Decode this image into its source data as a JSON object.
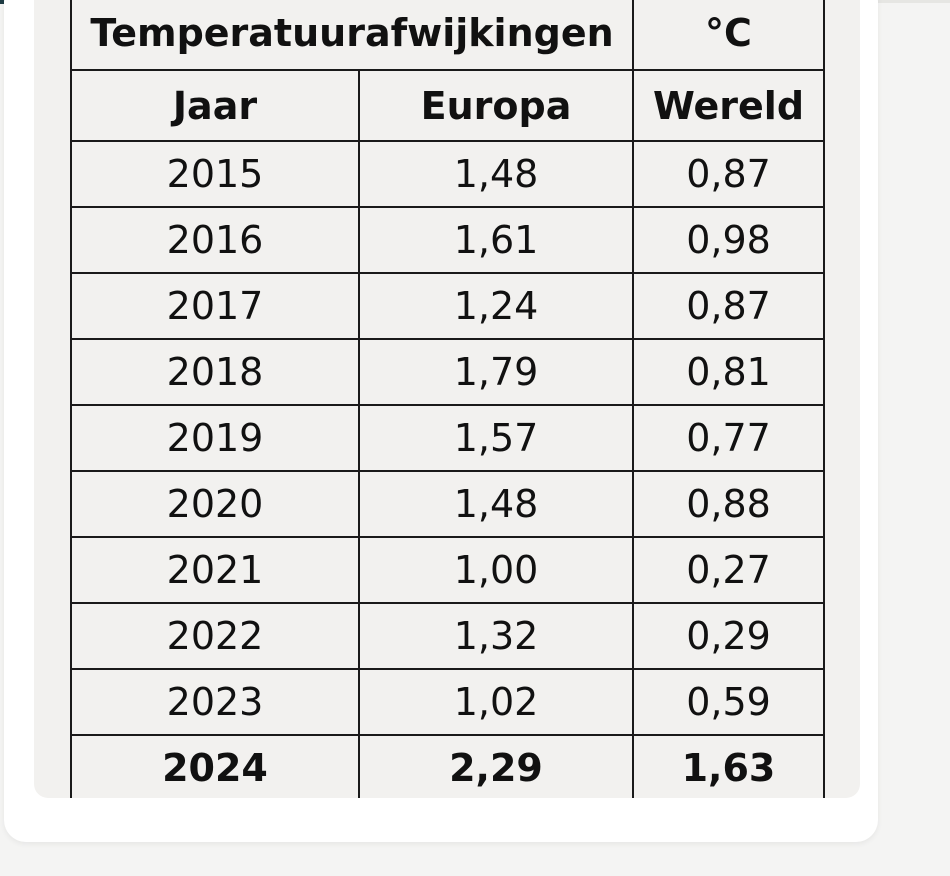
{
  "chart_data": {
    "type": "table",
    "title": "Temperatuurafwijkingen",
    "unit": "°C",
    "columns": [
      "Jaar",
      "Europa",
      "Wereld"
    ],
    "rows": [
      {
        "jaar": "2015",
        "europa": "1,48",
        "wereld": "0,87"
      },
      {
        "jaar": "2016",
        "europa": "1,61",
        "wereld": "0,98"
      },
      {
        "jaar": "2017",
        "europa": "1,24",
        "wereld": "0,87"
      },
      {
        "jaar": "2018",
        "europa": "1,79",
        "wereld": "0,81"
      },
      {
        "jaar": "2019",
        "europa": "1,57",
        "wereld": "0,77"
      },
      {
        "jaar": "2020",
        "europa": "1,48",
        "wereld": "0,88"
      },
      {
        "jaar": "2021",
        "europa": "1,00",
        "wereld": "0,27"
      },
      {
        "jaar": "2022",
        "europa": "1,32",
        "wereld": "0,29"
      },
      {
        "jaar": "2023",
        "europa": "1,02",
        "wereld": "0,59"
      },
      {
        "jaar": "2024",
        "europa": "2,29",
        "wereld": "1,63",
        "bold": true
      }
    ]
  },
  "colors": {
    "accent": "#1f3c44",
    "panel": "#f2f1ef",
    "border": "#1a1a1a"
  }
}
